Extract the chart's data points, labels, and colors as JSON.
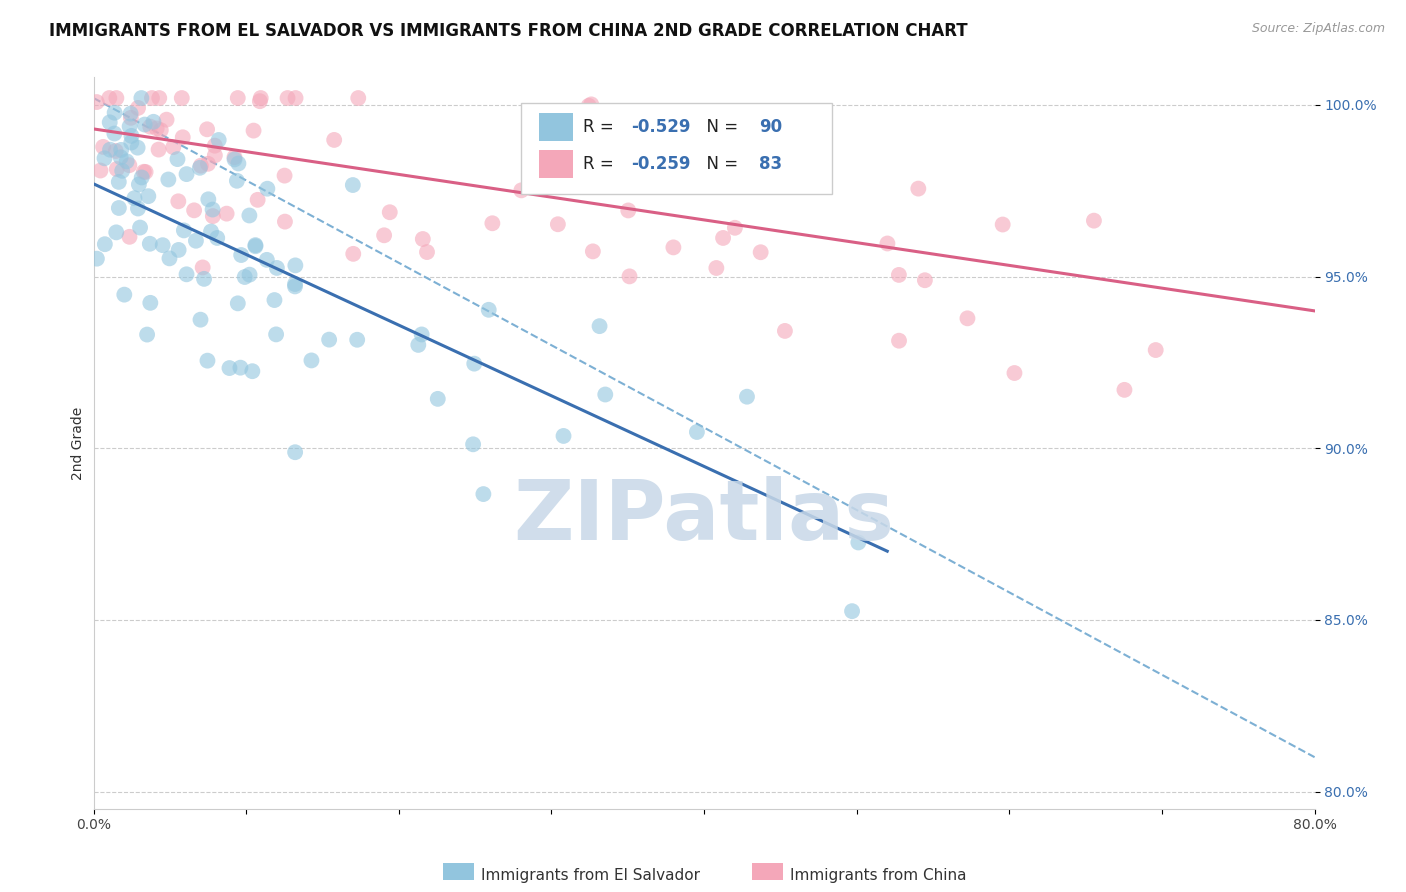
{
  "title": "IMMIGRANTS FROM EL SALVADOR VS IMMIGRANTS FROM CHINA 2ND GRADE CORRELATION CHART",
  "source": "Source: ZipAtlas.com",
  "ylabel": "2nd Grade",
  "xlim": [
    0.0,
    0.8
  ],
  "ylim": [
    0.795,
    1.008
  ],
  "yticks": [
    0.8,
    0.85,
    0.9,
    0.95,
    1.0
  ],
  "ytick_labels": [
    "80.0%",
    "85.0%",
    "90.0%",
    "95.0%",
    "100.0%"
  ],
  "xticks": [
    0.0,
    0.1,
    0.2,
    0.3,
    0.4,
    0.5,
    0.6,
    0.7,
    0.8
  ],
  "xtick_labels": [
    "0.0%",
    "",
    "",
    "",
    "",
    "",
    "",
    "",
    "80.0%"
  ],
  "blue_color": "#92c5de",
  "pink_color": "#f4a7b9",
  "blue_line_color": "#3a6fb0",
  "pink_line_color": "#d95f85",
  "dashed_line_color": "#7db0d4",
  "blue_line": {
    "x0": 0.0,
    "y0": 0.977,
    "x1": 0.52,
    "y1": 0.87
  },
  "pink_line": {
    "x0": 0.0,
    "y0": 0.993,
    "x1": 0.8,
    "y1": 0.94
  },
  "dashed_line": {
    "x0": 0.0,
    "y0": 1.002,
    "x1": 0.8,
    "y1": 0.81
  },
  "watermark": "ZIPatlas",
  "watermark_color": "#c8d8e8",
  "title_fontsize": 12,
  "axis_label_fontsize": 10,
  "tick_fontsize": 10,
  "legend_R_blue": "-0.529",
  "legend_N_blue": "90",
  "legend_R_pink": "-0.259",
  "legend_N_pink": "83",
  "bottom_label_blue": "Immigrants from El Salvador",
  "bottom_label_pink": "Immigrants from China"
}
